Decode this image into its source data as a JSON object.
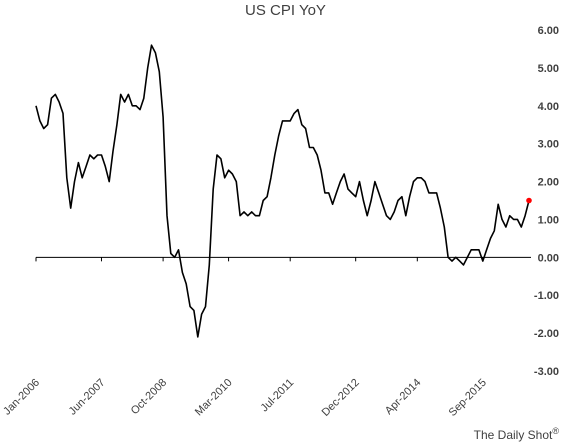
{
  "chart_data": {
    "type": "line",
    "title": "US CPI YoY",
    "xlabel": "",
    "ylabel": "",
    "ylim": [
      -3.0,
      6.0
    ],
    "yticks": [
      "6.00",
      "5.00",
      "4.00",
      "3.00",
      "2.00",
      "1.00",
      "0.00",
      "-1.00",
      "-2.00",
      "-3.00"
    ],
    "ytick_values": [
      6,
      5,
      4,
      3,
      2,
      1,
      0,
      -1,
      -2,
      -3
    ],
    "x_tick_labels": [
      "Jan-2006",
      "Jun-2007",
      "Oct-2008",
      "Mar-2010",
      "Jul-2011",
      "Dec-2012",
      "Apr-2014",
      "Sep-2015"
    ],
    "x_tick_index": [
      0,
      17,
      33,
      50,
      66,
      83,
      99,
      116
    ],
    "grid": false,
    "line_color": "#000000",
    "last_point_color": "#ff0000",
    "series": [
      {
        "values": [
          4.0,
          3.6,
          3.4,
          3.5,
          4.2,
          4.3,
          4.1,
          3.8,
          2.1,
          1.3,
          2.0,
          2.5,
          2.1,
          2.4,
          2.7,
          2.6,
          2.7,
          2.7,
          2.4,
          2.0,
          2.8,
          3.5,
          4.3,
          4.1,
          4.3,
          4.0,
          4.0,
          3.9,
          4.2,
          5.0,
          5.6,
          5.4,
          4.9,
          3.7,
          1.1,
          0.1,
          0.0,
          0.2,
          -0.4,
          -0.7,
          -1.3,
          -1.4,
          -2.1,
          -1.5,
          -1.3,
          -0.2,
          1.8,
          2.7,
          2.6,
          2.1,
          2.3,
          2.2,
          2.0,
          1.1,
          1.2,
          1.1,
          1.2,
          1.1,
          1.1,
          1.5,
          1.6,
          2.1,
          2.7,
          3.2,
          3.6,
          3.6,
          3.6,
          3.8,
          3.9,
          3.5,
          3.4,
          2.9,
          2.9,
          2.7,
          2.3,
          1.7,
          1.7,
          1.4,
          1.7,
          2.0,
          2.2,
          1.8,
          1.7,
          1.6,
          2.0,
          1.5,
          1.1,
          1.5,
          2.0,
          1.7,
          1.4,
          1.1,
          1.0,
          1.2,
          1.5,
          1.6,
          1.1,
          1.6,
          2.0,
          2.1,
          2.1,
          2.0,
          1.7,
          1.7,
          1.7,
          1.3,
          0.8,
          0.0,
          -0.1,
          0.0,
          -0.1,
          -0.2,
          0.0,
          0.2,
          0.2,
          0.2,
          -0.1,
          0.2,
          0.5,
          0.7,
          1.4,
          1.0,
          0.8,
          1.1,
          1.0,
          1.0,
          0.8,
          1.1,
          1.5
        ]
      }
    ]
  },
  "credit": {
    "text": "The Daily Shot",
    "mark": "®"
  }
}
